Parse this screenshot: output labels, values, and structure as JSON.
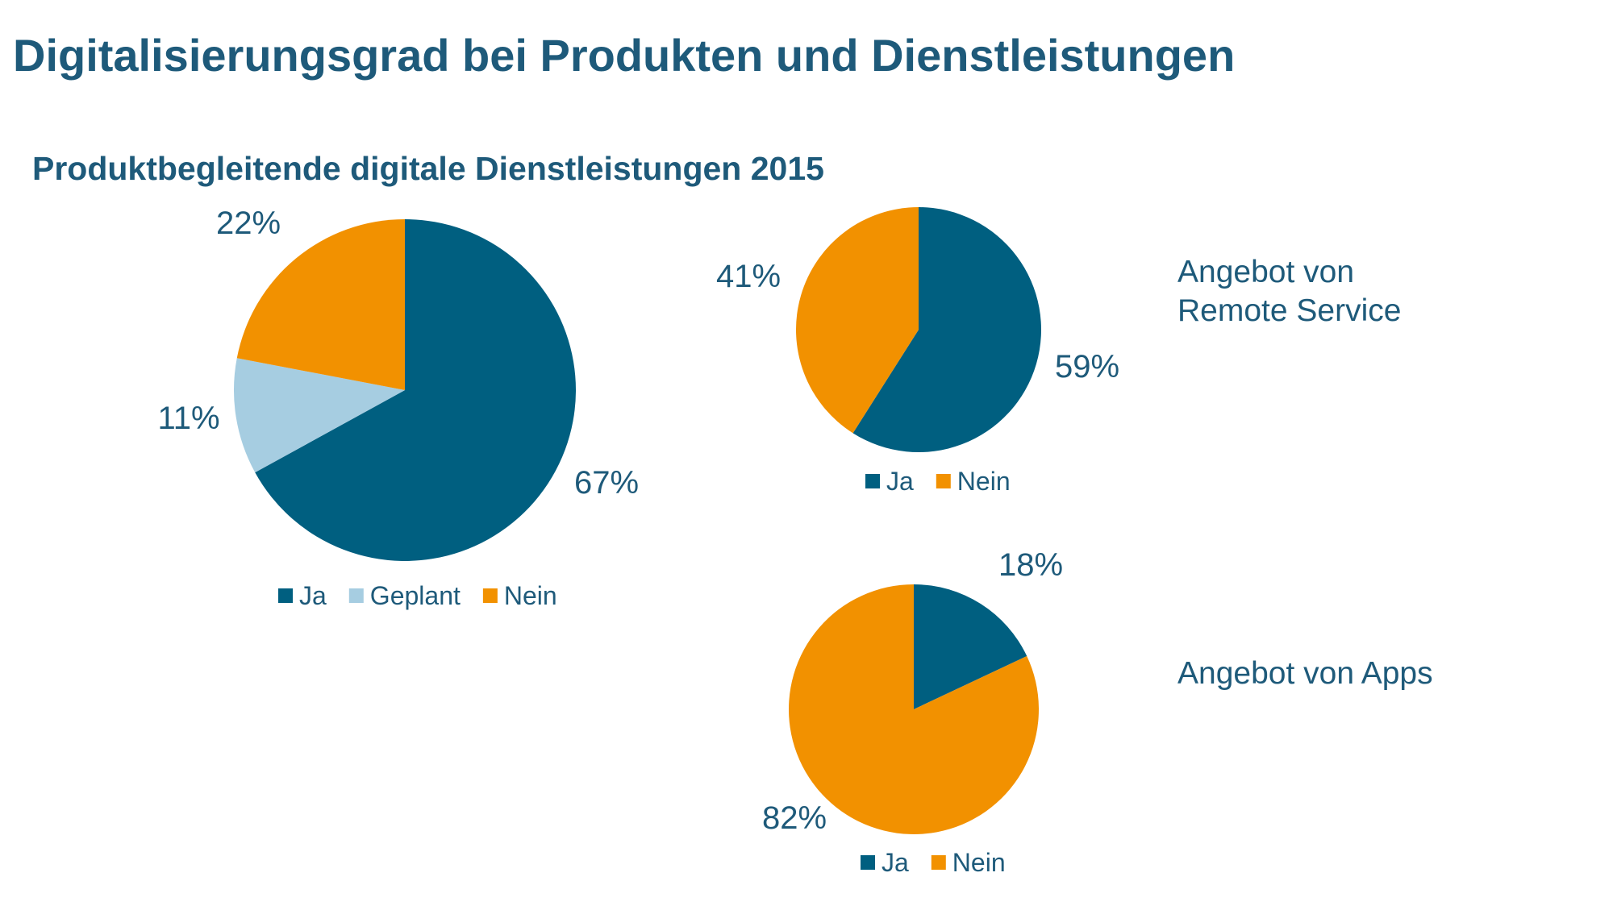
{
  "title": "Digitalisierungsgrad bei Produkten und Dienstleistungen",
  "subtitle": "Produktbegleitende digitale Dienstleistungen 2015",
  "colors": {
    "ja": "#005f80",
    "geplant": "#a6cde1",
    "nein": "#f29100",
    "text": "#1e5a7a"
  },
  "labels": {
    "remote_line1": "Angebot von",
    "remote_line2": "Remote Service",
    "apps": "Angebot von Apps"
  },
  "chart_data": [
    {
      "type": "pie",
      "id": "overall",
      "categories": [
        "Ja",
        "Geplant",
        "Nein"
      ],
      "values": [
        67,
        11,
        22
      ],
      "value_labels": [
        "67%",
        "11%",
        "22%"
      ],
      "colors": [
        "#005f80",
        "#a6cde1",
        "#f29100"
      ],
      "legend": "bottom"
    },
    {
      "type": "pie",
      "id": "remote-service",
      "categories": [
        "Ja",
        "Nein"
      ],
      "values": [
        59,
        41
      ],
      "value_labels": [
        "59%",
        "41%"
      ],
      "colors": [
        "#005f80",
        "#f29100"
      ],
      "legend": "bottom"
    },
    {
      "type": "pie",
      "id": "apps",
      "categories": [
        "Ja",
        "Nein"
      ],
      "values": [
        18,
        82
      ],
      "value_labels": [
        "18%",
        "82%"
      ],
      "colors": [
        "#005f80",
        "#f29100"
      ],
      "legend": "bottom"
    }
  ]
}
